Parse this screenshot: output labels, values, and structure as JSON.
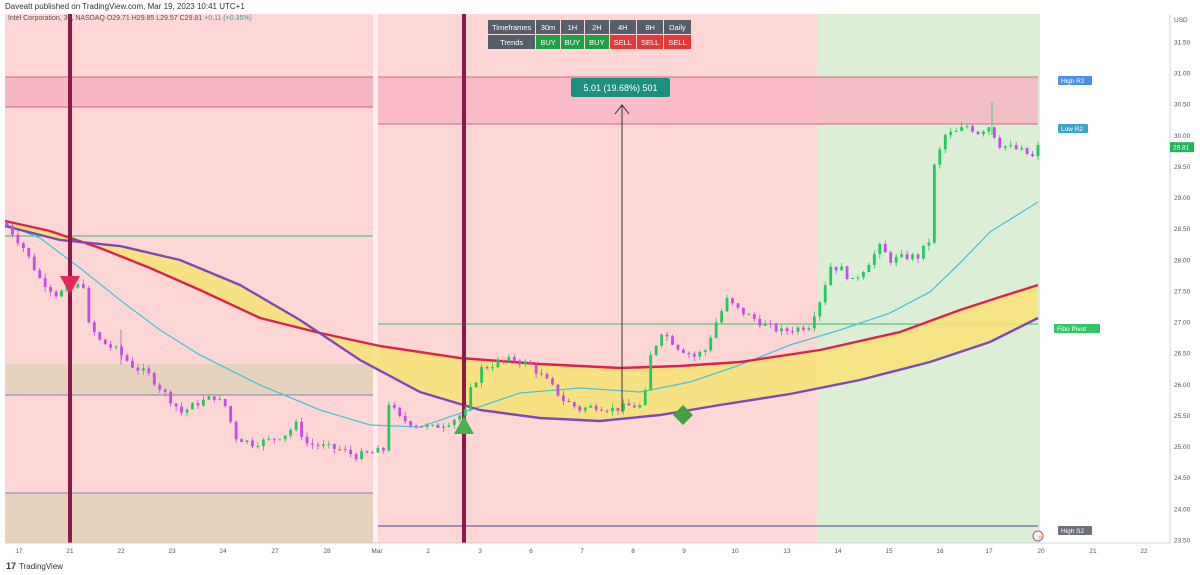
{
  "header": {
    "published": "Daveatt published on TradingView.com, Mar 19, 2023 10:41 UTC+1",
    "symbol": "Intel Corporation, 30, NASDAQ",
    "ohlc": "O29.71  H29.85  L29.57  C29.81",
    "change": "+0.11 (+0.35%)"
  },
  "trend_table": {
    "row1": [
      "Timeframes",
      "30m",
      "1H",
      "2H",
      "4H",
      "8H",
      "Daily"
    ],
    "row2": [
      "Trends",
      "BUY",
      "BUY",
      "BUY",
      "SELL",
      "SELL",
      "SELL"
    ]
  },
  "measure_label": "5.01 (19.68%) 501",
  "level_labels": {
    "high_r2": "High R2",
    "low_r2": "Low R2",
    "fibo_pivot": "Fibo Pivot",
    "high_s2": "High S2"
  },
  "price_axis": {
    "currency": "USD",
    "last_price": "29.81"
  },
  "footer": {
    "brand": "TradingView"
  },
  "colors": {
    "bg_red_zone": "#ffd6d6",
    "bg_green_zone": "#dcefd6",
    "band_pink": "#f7b6c4",
    "band_tan": "#e7d2bd",
    "up_candle": "#21c95f",
    "down_candle": "#c24de8",
    "line_red": "#d9234b",
    "line_purple": "#7d4ab5",
    "line_cyan": "#4cc3d9",
    "fill_yellow": "#f7e27a",
    "vline": "#8a1a4a",
    "label_teal": "#1c8f7f"
  },
  "chart_data": {
    "type": "candlestick",
    "x_tick_labels": [
      "17",
      "21",
      "22",
      "23",
      "24",
      "27",
      "28",
      "Mar",
      "2",
      "3",
      "6",
      "7",
      "8",
      "9",
      "10",
      "13",
      "14",
      "15",
      "16",
      "17",
      "20",
      "21",
      "22"
    ],
    "y_tick_labels": [
      "31.50",
      "31.00",
      "30.50",
      "30.00",
      "29.50",
      "29.00",
      "28.50",
      "28.00",
      "27.50",
      "27.00",
      "26.50",
      "26.00",
      "25.50",
      "25.00",
      "24.50",
      "24.00",
      "23.50"
    ],
    "ylim": [
      23.45,
      31.95
    ],
    "close_path": [
      [
        0,
        28.55
      ],
      [
        3,
        28.2
      ],
      [
        6,
        27.7
      ],
      [
        9,
        27.45
      ],
      [
        12,
        27.55
      ],
      [
        14,
        27.6
      ],
      [
        15,
        26.95
      ],
      [
        17,
        26.7
      ],
      [
        20,
        26.55
      ],
      [
        23,
        26.3
      ],
      [
        26,
        26.15
      ],
      [
        29,
        25.85
      ],
      [
        32,
        25.55
      ],
      [
        35,
        25.7
      ],
      [
        38,
        25.8
      ],
      [
        40,
        25.65
      ],
      [
        42,
        25.15
      ],
      [
        45,
        25.05
      ],
      [
        48,
        25.1
      ],
      [
        51,
        25.2
      ],
      [
        53,
        25.35
      ],
      [
        55,
        25.05
      ],
      [
        58,
        25.0
      ],
      [
        61,
        24.95
      ],
      [
        64,
        24.85
      ],
      [
        67,
        24.9
      ],
      [
        69,
        24.95
      ],
      [
        70,
        25.7
      ],
      [
        72,
        25.45
      ],
      [
        75,
        25.35
      ],
      [
        78,
        25.3
      ],
      [
        81,
        25.4
      ],
      [
        84,
        25.55
      ],
      [
        85,
        25.9
      ],
      [
        87,
        26.25
      ],
      [
        90,
        26.35
      ],
      [
        93,
        26.4
      ],
      [
        96,
        26.3
      ],
      [
        99,
        26.05
      ],
      [
        102,
        25.75
      ],
      [
        105,
        25.6
      ],
      [
        108,
        25.65
      ],
      [
        111,
        25.6
      ],
      [
        114,
        25.65
      ],
      [
        116,
        25.65
      ],
      [
        117,
        25.85
      ],
      [
        118,
        26.45
      ],
      [
        120,
        26.85
      ],
      [
        123,
        26.6
      ],
      [
        126,
        26.45
      ],
      [
        128,
        26.55
      ],
      [
        130,
        27.0
      ],
      [
        132,
        27.35
      ],
      [
        134,
        27.2
      ],
      [
        136,
        27.1
      ],
      [
        139,
        26.95
      ],
      [
        142,
        26.85
      ],
      [
        145,
        26.9
      ],
      [
        147,
        26.95
      ],
      [
        149,
        27.35
      ],
      [
        151,
        27.9
      ],
      [
        153,
        27.85
      ],
      [
        155,
        27.65
      ],
      [
        157,
        27.85
      ],
      [
        160,
        28.2
      ],
      [
        162,
        28.0
      ],
      [
        165,
        28.05
      ],
      [
        167,
        28.05
      ],
      [
        169,
        28.3
      ],
      [
        170,
        29.5
      ],
      [
        172,
        30.0
      ],
      [
        174,
        30.05
      ],
      [
        176,
        30.15
      ],
      [
        178,
        30.05
      ],
      [
        180,
        30.15
      ],
      [
        182,
        29.85
      ],
      [
        184,
        29.8
      ],
      [
        186,
        29.75
      ],
      [
        188,
        29.65
      ],
      [
        189,
        29.81
      ]
    ],
    "last_price": 29.81,
    "measure": {
      "from": 25.5,
      "to": 30.51,
      "label": "5.01 (19.68%) 501"
    }
  }
}
